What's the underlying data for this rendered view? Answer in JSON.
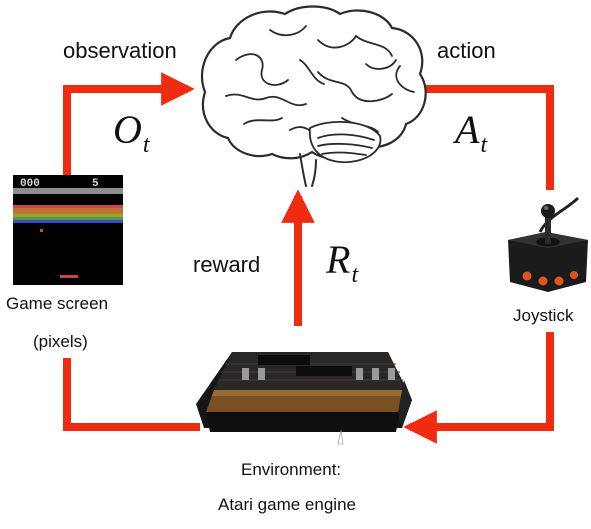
{
  "labels": {
    "observation": "observation",
    "action": "action",
    "reward": "reward",
    "game_screen": "Game screen",
    "pixels": "(pixels)",
    "joystick": "Joystick",
    "environment": "Environment:",
    "engine": "Atari game engine"
  },
  "math": {
    "observation_symbol": "O",
    "action_symbol": "A",
    "reward_symbol": "R",
    "subscript": "t"
  },
  "screen": {
    "score_left": "000",
    "score_right": "5"
  },
  "colors": {
    "arrow": "#ef2b12",
    "brain_outline": "#2b2b2b"
  },
  "icons": {
    "brain": "brain-icon",
    "game_screen": "breakout-screen-icon",
    "joystick": "joystick-icon",
    "console": "atari-console-icon"
  }
}
